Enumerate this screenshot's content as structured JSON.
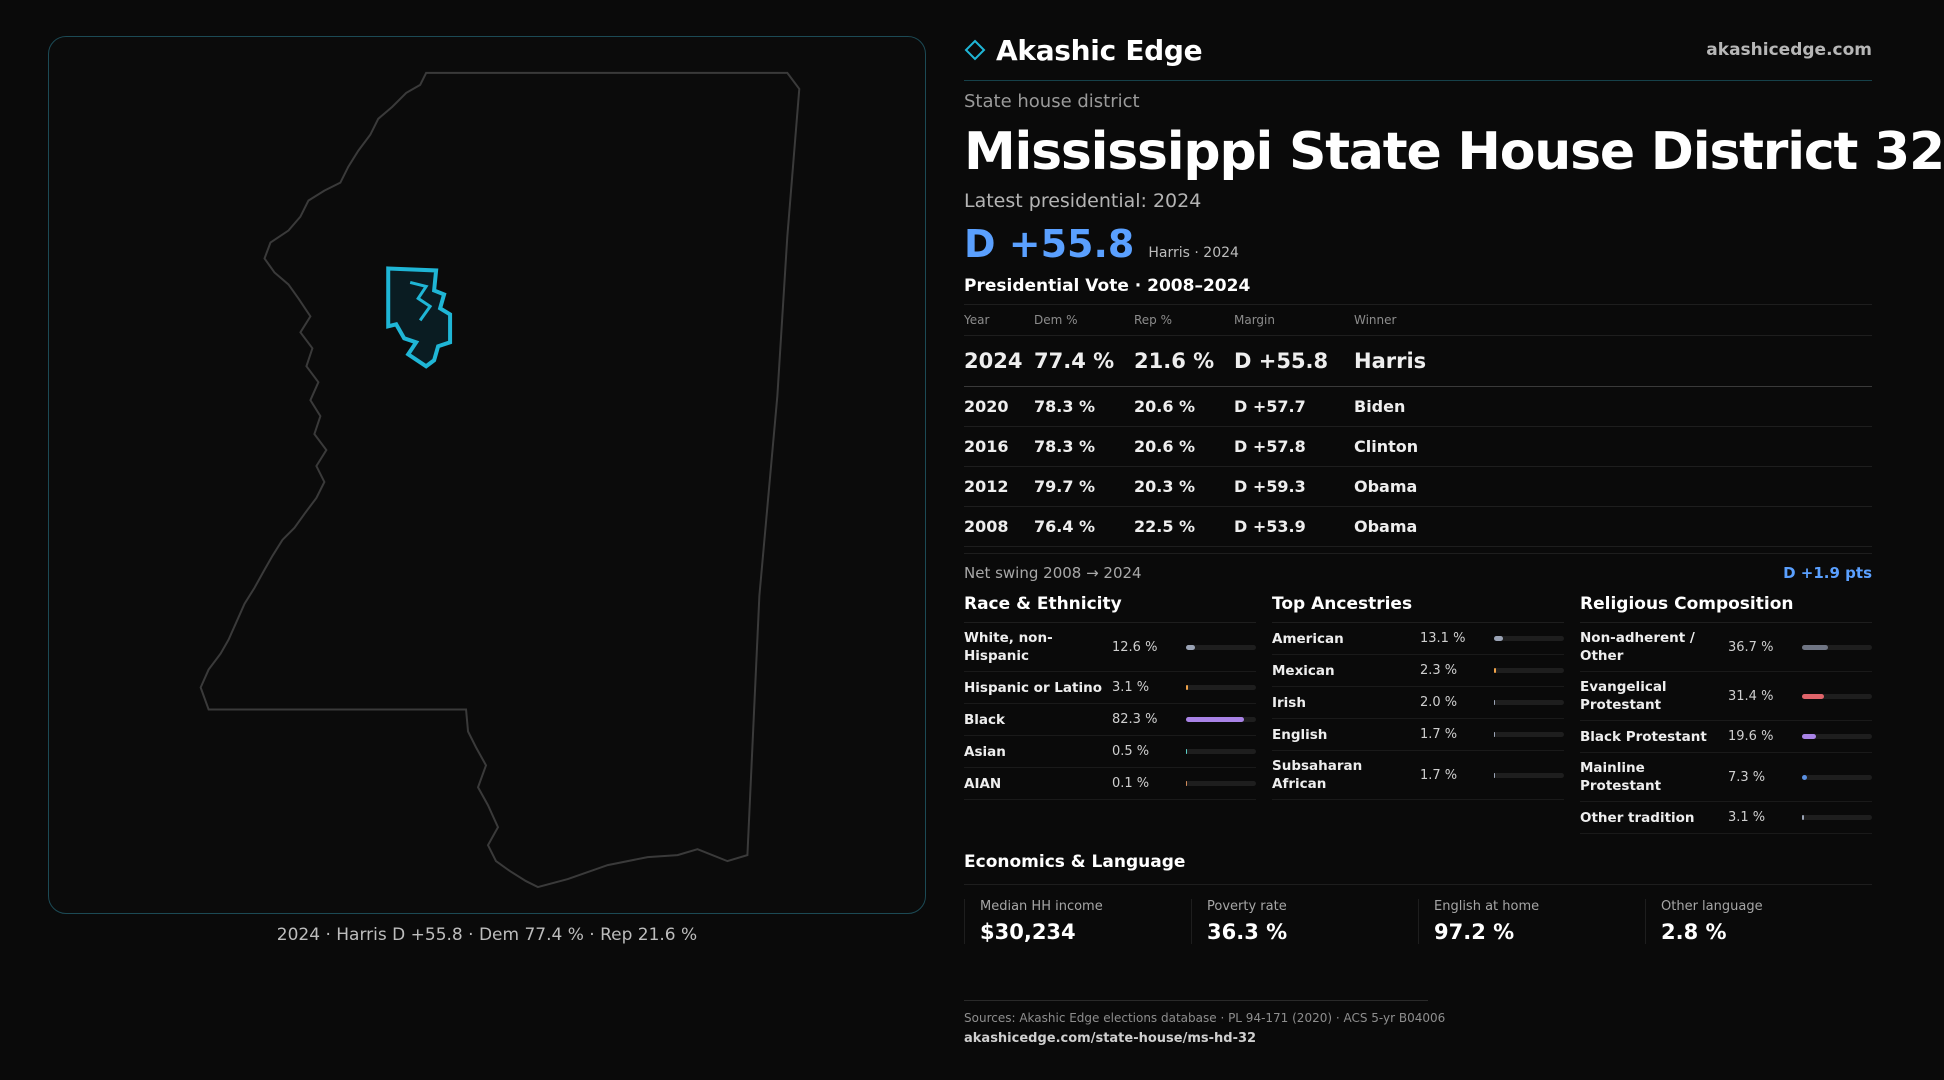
{
  "brand": {
    "name": "Akashic Edge",
    "url": "akashicedge.com",
    "accent": "#1fb6d6"
  },
  "map": {
    "caption": "2024 · Harris D +55.8 · Dem 77.4 % · Rep 21.6 %"
  },
  "header": {
    "kind": "State house district",
    "title": "Mississippi State House District 32",
    "latest_label": "Latest presidential: 2024",
    "margin": "D +55.8",
    "margin_sub": "Harris · 2024",
    "section": "Presidential Vote · 2008–2024"
  },
  "votes": {
    "headers": [
      "Year",
      "Dem %",
      "Rep %",
      "Margin",
      "Winner"
    ],
    "rows": [
      {
        "year": "2024",
        "dem": "77.4 %",
        "rep": "21.6 %",
        "margin": "D +55.8",
        "winner": "Harris"
      },
      {
        "year": "2020",
        "dem": "78.3 %",
        "rep": "20.6 %",
        "margin": "D +57.7",
        "winner": "Biden"
      },
      {
        "year": "2016",
        "dem": "78.3 %",
        "rep": "20.6 %",
        "margin": "D +57.8",
        "winner": "Clinton"
      },
      {
        "year": "2012",
        "dem": "79.7 %",
        "rep": "20.3 %",
        "margin": "D +59.3",
        "winner": "Obama"
      },
      {
        "year": "2008",
        "dem": "76.4 %",
        "rep": "22.5 %",
        "margin": "D +53.9",
        "winner": "Obama"
      }
    ]
  },
  "swing": {
    "label": "Net swing 2008 → 2024",
    "value": "D +1.9 pts"
  },
  "race": {
    "title": "Race & Ethnicity",
    "items": [
      {
        "name": "White, non-Hispanic",
        "pct": "12.6 %",
        "frac": 0.126,
        "color": "#9aa3b5"
      },
      {
        "name": "Hispanic or Latino",
        "pct": "3.1 %",
        "frac": 0.031,
        "color": "#f0a34a"
      },
      {
        "name": "Black",
        "pct": "82.3 %",
        "frac": 0.823,
        "color": "#a983e6"
      },
      {
        "name": "Asian",
        "pct": "0.5 %",
        "frac": 0.005,
        "color": "#5ad0c8"
      },
      {
        "name": "AIAN",
        "pct": "0.1 %",
        "frac": 0.001,
        "color": "#d08a5a"
      }
    ]
  },
  "ancestry": {
    "title": "Top Ancestries",
    "items": [
      {
        "name": "American",
        "pct": "13.1 %",
        "frac": 0.131,
        "color": "#9aa3b5"
      },
      {
        "name": "Mexican",
        "pct": "2.3 %",
        "frac": 0.023,
        "color": "#f0a34a"
      },
      {
        "name": "Irish",
        "pct": "2.0 %",
        "frac": 0.02,
        "color": "#9aa3b5"
      },
      {
        "name": "English",
        "pct": "1.7 %",
        "frac": 0.017,
        "color": "#9aa3b5"
      },
      {
        "name": "Subsaharan African",
        "pct": "1.7 %",
        "frac": 0.017,
        "color": "#9aa3b5"
      }
    ]
  },
  "religion": {
    "title": "Religious Composition",
    "items": [
      {
        "name": "Non-adherent / Other",
        "pct": "36.7 %",
        "frac": 0.367,
        "color": "#6f7583"
      },
      {
        "name": "Evangelical Protestant",
        "pct": "31.4 %",
        "frac": 0.314,
        "color": "#e0646a"
      },
      {
        "name": "Black Protestant",
        "pct": "19.6 %",
        "frac": 0.196,
        "color": "#a983e6"
      },
      {
        "name": "Mainline Protestant",
        "pct": "7.3 %",
        "frac": 0.073,
        "color": "#5a8fe0"
      },
      {
        "name": "Other tradition",
        "pct": "3.1 %",
        "frac": 0.031,
        "color": "#9aa3b5"
      }
    ]
  },
  "economics": {
    "title": "Economics & Language",
    "items": [
      {
        "label": "Median HH income",
        "value": "$30,234"
      },
      {
        "label": "Poverty rate",
        "value": "36.3 %"
      },
      {
        "label": "English at home",
        "value": "97.2 %"
      },
      {
        "label": "Other language",
        "value": "2.8 %"
      }
    ]
  },
  "footer": {
    "sources": "Sources: Akashic Edge elections database · PL 94-171 (2020) · ACS 5-yr B04006",
    "url": "akashicedge.com/state-house/ms-hd-32"
  }
}
